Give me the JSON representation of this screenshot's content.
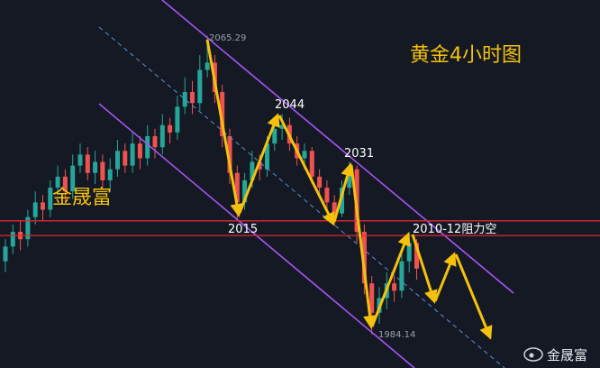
{
  "chart_data": {
    "type": "candlestick",
    "title": "黄金4小时图",
    "brand": "金晟富",
    "watermark": "金晟富",
    "annotations": [
      "2065.29",
      "2044",
      "2031",
      "2015",
      "2010-12阻力空",
      "1984.14"
    ],
    "ylim": [
      1975,
      2075
    ],
    "up_color": "#26a69a",
    "down_color": "#ef5350",
    "level_color": "#e0262f",
    "levels": [
      2015,
      2011
    ],
    "open": [
      2004,
      2008,
      2012,
      2010,
      2016,
      2020,
      2018,
      2024,
      2027,
      2023,
      2030,
      2033,
      2028,
      2031,
      2026,
      2029,
      2034,
      2030,
      2036,
      2032,
      2038,
      2035,
      2041,
      2039,
      2046,
      2050,
      2047,
      2056,
      2058,
      2050,
      2038,
      2028,
      2020,
      2026,
      2031,
      2029,
      2036,
      2040,
      2041,
      2036,
      2032,
      2034,
      2027,
      2024,
      2020,
      2017,
      2024,
      2029,
      2012,
      1998,
      1990,
      1994,
      1998,
      1996,
      2004,
      2009
    ],
    "high": [
      2010,
      2014,
      2015,
      2018,
      2023,
      2022,
      2026,
      2030,
      2029,
      2033,
      2036,
      2035,
      2034,
      2033,
      2032,
      2037,
      2036,
      2039,
      2038,
      2041,
      2040,
      2044,
      2043,
      2049,
      2054,
      2053,
      2060,
      2065.29,
      2060,
      2052,
      2040,
      2030,
      2028,
      2034,
      2033,
      2038,
      2042,
      2044,
      2043,
      2038,
      2036,
      2035,
      2029,
      2026,
      2022,
      2026,
      2031,
      2030,
      2014,
      2000,
      1997,
      2001,
      2000,
      2006,
      2012,
      2010
    ],
    "low": [
      2001,
      2006,
      2007,
      2008,
      2014,
      2015,
      2016,
      2022,
      2020,
      2021,
      2028,
      2026,
      2025,
      2024,
      2023,
      2027,
      2028,
      2028,
      2029,
      2030,
      2032,
      2033,
      2036,
      2037,
      2044,
      2044,
      2045,
      2054,
      2047,
      2035,
      2025,
      2015,
      2018,
      2024,
      2026,
      2027,
      2034,
      2037,
      2034,
      2030,
      2029,
      2025,
      2022,
      2018,
      2014,
      2016,
      2022,
      2009,
      1995,
      1984.14,
      1987,
      1991,
      1993,
      1994,
      2001,
      1999
    ],
    "close": [
      2008,
      2012,
      2010,
      2016,
      2020,
      2018,
      2024,
      2027,
      2023,
      2030,
      2033,
      2028,
      2031,
      2026,
      2029,
      2034,
      2030,
      2036,
      2032,
      2038,
      2035,
      2041,
      2039,
      2046,
      2050,
      2047,
      2056,
      2058,
      2050,
      2038,
      2028,
      2020,
      2026,
      2031,
      2029,
      2036,
      2040,
      2041,
      2036,
      2032,
      2034,
      2027,
      2024,
      2020,
      2017,
      2024,
      2029,
      2012,
      1998,
      1990,
      1994,
      1998,
      1996,
      2004,
      2009,
      2002
    ]
  }
}
